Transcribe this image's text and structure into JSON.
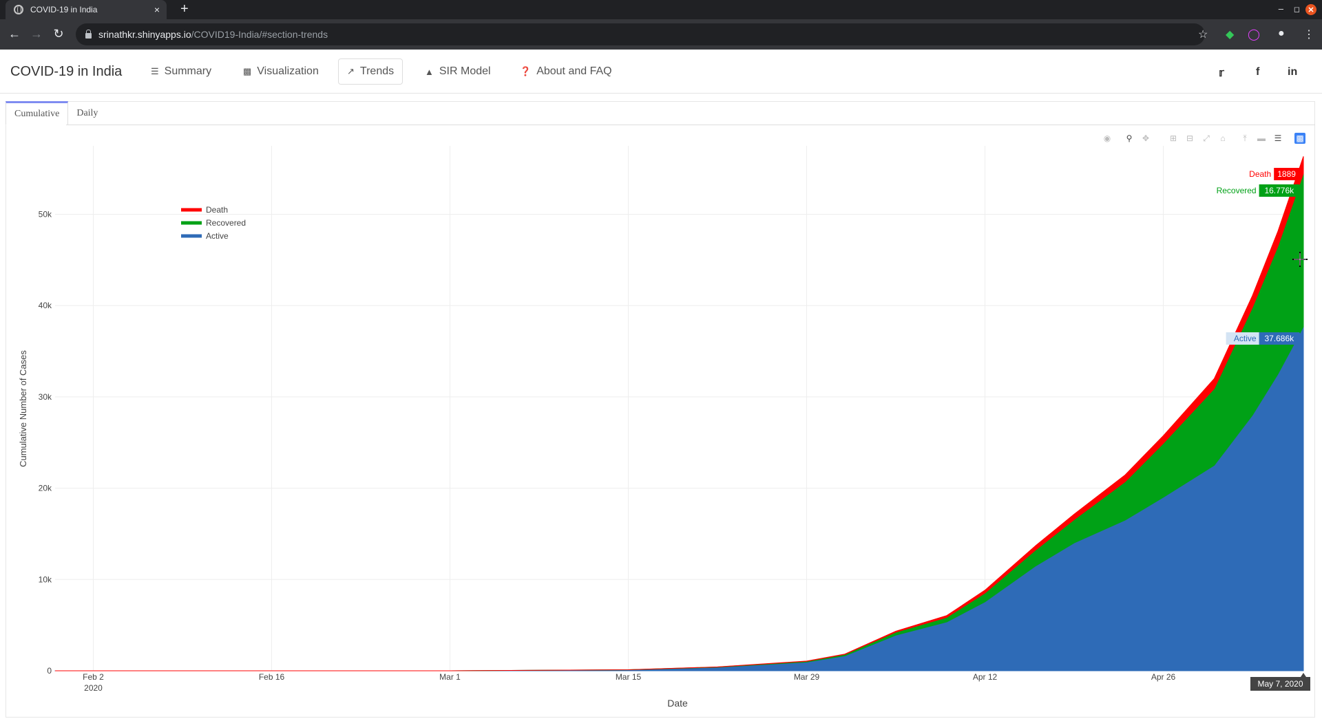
{
  "browser": {
    "tab_title": "COVID-19 in India",
    "tab_close": "×",
    "new_tab": "+",
    "url_host": "srinathkr.shinyapps.io",
    "url_path": "/COVID19-India/#section-trends"
  },
  "navbar": {
    "brand": "COVID-19 in India",
    "items": [
      {
        "label": "Summary",
        "icon": "list-icon"
      },
      {
        "label": "Visualization",
        "icon": "bar-chart-icon"
      },
      {
        "label": "Trends",
        "icon": "line-chart-icon",
        "active": true
      },
      {
        "label": "SIR Model",
        "icon": "area-chart-icon"
      },
      {
        "label": "About and FAQ",
        "icon": "question-icon"
      }
    ],
    "social": [
      "twitter-icon",
      "facebook-icon",
      "linkedin-icon"
    ]
  },
  "tabs": [
    {
      "label": "Cumulative",
      "active": true
    },
    {
      "label": "Daily",
      "active": false
    }
  ],
  "colors": {
    "death": "#ff0000",
    "recovered": "#00a116",
    "active": "#2e6bb7"
  },
  "chart_data": {
    "type": "area",
    "stacked": true,
    "xlabel": "Date",
    "ylabel": "Cumulative Number of Cases",
    "xlim": [
      "2020-01-30",
      "2020-05-07"
    ],
    "ylim": [
      0,
      57500
    ],
    "x_ticks": [
      "Feb 2\n2020",
      "Feb 16",
      "Mar 1",
      "Mar 15",
      "Mar 29",
      "Apr 12",
      "Apr 26"
    ],
    "y_ticks": [
      "0",
      "10k",
      "20k",
      "30k",
      "40k",
      "50k"
    ],
    "legend": {
      "placement": "top-left",
      "entries": [
        "Death",
        "Recovered",
        "Active"
      ]
    },
    "grid": true,
    "x": [
      "2020-01-30",
      "2020-03-01",
      "2020-03-15",
      "2020-03-22",
      "2020-03-29",
      "2020-04-01",
      "2020-04-05",
      "2020-04-09",
      "2020-04-12",
      "2020-04-16",
      "2020-04-19",
      "2020-04-23",
      "2020-04-26",
      "2020-04-30",
      "2020-05-03",
      "2020-05-05",
      "2020-05-07"
    ],
    "series": [
      {
        "name": "Active",
        "values": [
          1,
          3,
          100,
          390,
          950,
          1640,
          3900,
          5350,
          7550,
          11500,
          14000,
          16500,
          19000,
          22500,
          28000,
          32500,
          37686
        ]
      },
      {
        "name": "Recovered",
        "values": [
          0,
          0,
          10,
          25,
          90,
          150,
          330,
          500,
          960,
          1750,
          2550,
          4200,
          5900,
          8400,
          11800,
          14000,
          16776
        ]
      },
      {
        "name": "Death",
        "values": [
          0,
          0,
          2,
          10,
          25,
          40,
          110,
          200,
          320,
          480,
          600,
          750,
          850,
          1100,
          1300,
          1650,
          1889
        ]
      }
    ],
    "hover": {
      "x_label": "May 7, 2020",
      "death": {
        "name": "Death",
        "value": "1889"
      },
      "recovered": {
        "name": "Recovered",
        "value": "16.776k"
      },
      "active": {
        "name": "Active",
        "value": "37.686k"
      }
    }
  }
}
